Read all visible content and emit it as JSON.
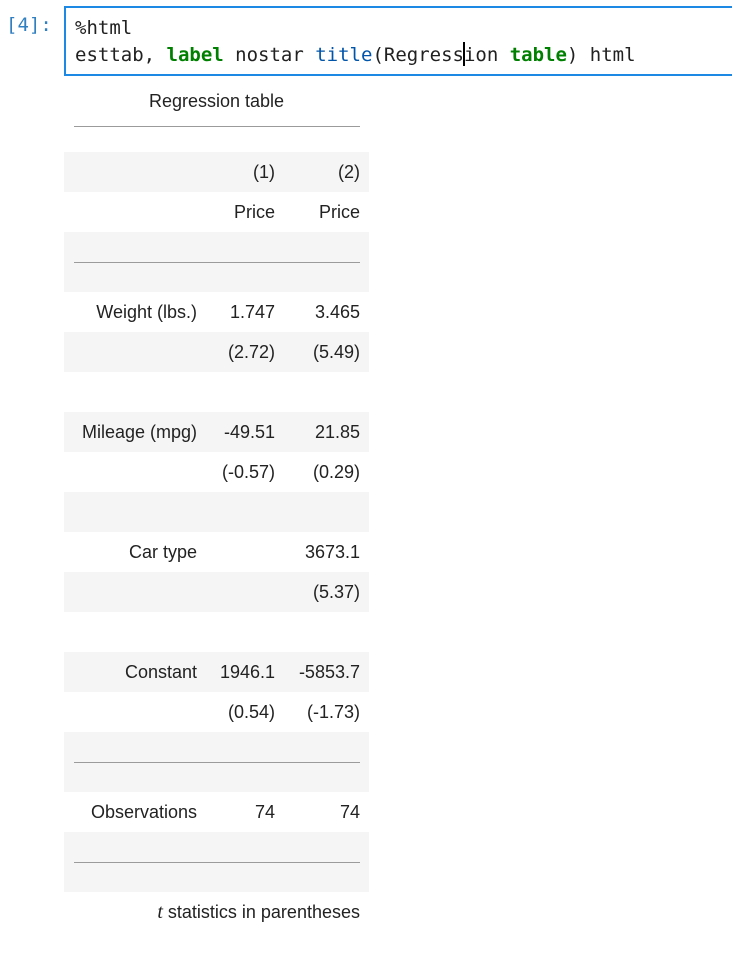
{
  "cell": {
    "prompt": "[4]:",
    "line1": "%html",
    "line2_a": "esttab, ",
    "line2_b": "label",
    "line2_c": " nostar ",
    "line2_d": "title",
    "line2_e": "(Regress",
    "line2_f": "ion ",
    "line2_g": "table",
    "line2_h": ") html"
  },
  "table": {
    "caption": "Regression table",
    "model_numbers": [
      "(1)",
      "(2)"
    ],
    "depvars": [
      "Price",
      "Price"
    ],
    "rows": [
      {
        "label": "Weight (lbs.)",
        "m1": "1.747",
        "m2": "3.465"
      },
      {
        "label": "",
        "m1": "(2.72)",
        "m2": "(5.49)"
      },
      {
        "label": "Mileage (mpg)",
        "m1": "-49.51",
        "m2": "21.85"
      },
      {
        "label": "",
        "m1": "(-0.57)",
        "m2": "(0.29)"
      },
      {
        "label": "Car type",
        "m1": "",
        "m2": "3673.1"
      },
      {
        "label": "",
        "m1": "",
        "m2": "(5.37)"
      },
      {
        "label": "Constant",
        "m1": "1946.1",
        "m2": "-5853.7"
      },
      {
        "label": "",
        "m1": "(0.54)",
        "m2": "(-1.73)"
      }
    ],
    "observations": {
      "label": "Observations",
      "m1": "74",
      "m2": "74"
    },
    "note_italic": "t",
    "note_rest": " statistics in parentheses"
  }
}
